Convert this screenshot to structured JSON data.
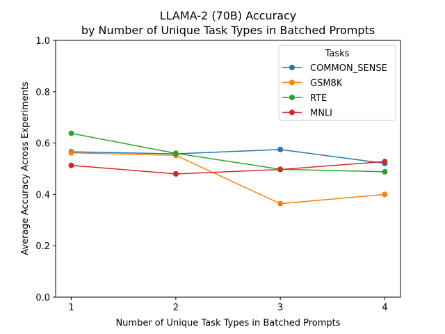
{
  "chart_data": {
    "type": "line",
    "title_line1": "LLAMA-2 (70B) Accuracy",
    "title_line2": "by Number of Unique Task Types in Batched Prompts",
    "xlabel": "Number of Unique Task Types in Batched Prompts",
    "ylabel": "Average Accuracy Across Experiments",
    "x": [
      1,
      2,
      3,
      4
    ],
    "xticks": [
      "1",
      "2",
      "3",
      "4"
    ],
    "yticks": [
      "0.0",
      "0.2",
      "0.4",
      "0.6",
      "0.8",
      "1.0"
    ],
    "xlim": [
      0.85,
      4.15
    ],
    "ylim": [
      0,
      1
    ],
    "grid": false,
    "legend": {
      "title": "Tasks",
      "placement": "upper-right"
    },
    "series": [
      {
        "name": "COMMON_SENSE",
        "color": "#1f77b4",
        "values": [
          0.566,
          0.558,
          0.575,
          0.521
        ]
      },
      {
        "name": "GSM8K",
        "color": "#ff7f0e",
        "values": [
          0.562,
          0.552,
          0.364,
          0.4
        ]
      },
      {
        "name": "RTE",
        "color": "#2ca02c",
        "values": [
          0.638,
          0.56,
          0.498,
          0.488
        ]
      },
      {
        "name": "MNLI",
        "color": "#d62728",
        "values": [
          0.513,
          0.48,
          0.497,
          0.528
        ]
      }
    ]
  }
}
